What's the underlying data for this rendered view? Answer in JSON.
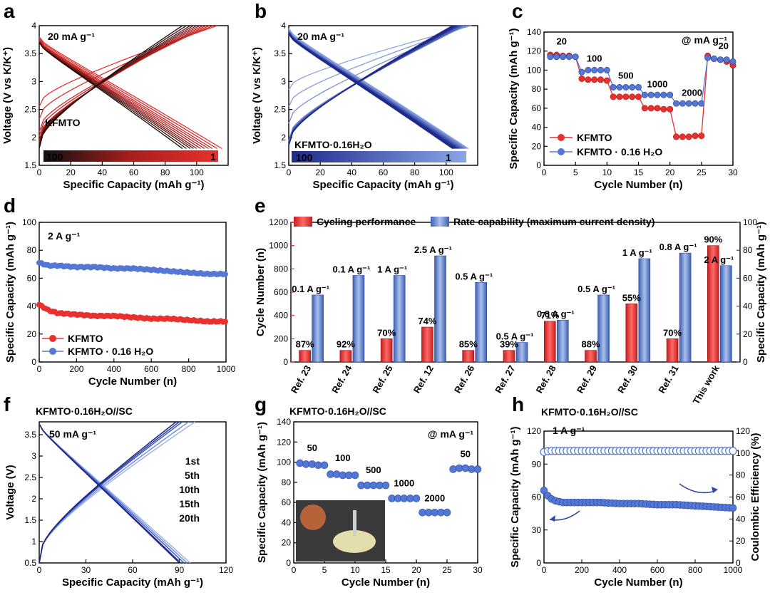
{
  "figure": {
    "panel_letters": [
      "a",
      "b",
      "c",
      "d",
      "e",
      "f",
      "g",
      "h"
    ],
    "colors": {
      "red": "#e8312f",
      "red_dark": "#a81e1e",
      "blue": "#5577d4",
      "blue_dark": "#1f2a8c",
      "blue_light": "#8aa6e6",
      "bar_red": "#e8312f",
      "bar_blue": "#6f8fd1"
    }
  },
  "chart_data": [
    {
      "id": "a",
      "type": "line",
      "title": "20 mA g⁻¹",
      "xlabel": "Specific Capacity (mAh g⁻¹)",
      "ylabel": "Voltage (V vs K/K⁺)",
      "xlim": [
        0,
        120
      ],
      "ylim": [
        1.5,
        4.0
      ],
      "xticks": [
        0,
        20,
        40,
        60,
        80,
        100
      ],
      "yticks": [
        1.5,
        2.0,
        2.5,
        3.0,
        3.5,
        4.0
      ],
      "legend": {
        "label": "KFMTO",
        "colorbar_left": "100",
        "colorbar_right": "1"
      },
      "series": [
        {
          "cycle": 1,
          "charge_cap": 113,
          "discharge_cap": 116,
          "charge_start_v": 2.55,
          "discharge_start_v": 3.8,
          "end_v": 1.8
        },
        {
          "cycle": 10,
          "charge_cap": 108,
          "discharge_cap": 110,
          "charge_start_v": 2.1,
          "discharge_start_v": 3.75,
          "end_v": 1.8
        },
        {
          "cycle": 30,
          "charge_cap": 104,
          "discharge_cap": 105,
          "charge_start_v": 1.95,
          "discharge_start_v": 3.72,
          "end_v": 1.8
        },
        {
          "cycle": 50,
          "charge_cap": 100,
          "discharge_cap": 100,
          "charge_start_v": 1.9,
          "discharge_start_v": 3.72,
          "end_v": 1.8
        },
        {
          "cycle": 75,
          "charge_cap": 96,
          "discharge_cap": 96,
          "charge_start_v": 1.85,
          "discharge_start_v": 3.7,
          "end_v": 1.8
        },
        {
          "cycle": 100,
          "charge_cap": 91,
          "discharge_cap": 91,
          "charge_start_v": 1.8,
          "discharge_start_v": 3.7,
          "end_v": 1.8
        }
      ]
    },
    {
      "id": "b",
      "type": "line",
      "title": "20 mA g⁻¹",
      "xlabel": "Specific Capacity (mAh g⁻¹)",
      "ylabel": "Voltage (V vs K/K⁺)",
      "xlim": [
        0,
        120
      ],
      "ylim": [
        1.5,
        4.0
      ],
      "xticks": [
        0,
        20,
        40,
        60,
        80,
        100
      ],
      "yticks": [
        1.5,
        2.0,
        2.5,
        3.0,
        3.5,
        4.0
      ],
      "legend": {
        "label": "KFMTO·0.16H₂O",
        "colorbar_left": "100",
        "colorbar_right": "1"
      },
      "series": [
        {
          "cycle": 1,
          "charge_cap": 116,
          "discharge_cap": 114,
          "charge_start_v": 2.85,
          "discharge_start_v": 3.95,
          "end_v": 1.8
        },
        {
          "cycle": 10,
          "charge_cap": 112,
          "discharge_cap": 112,
          "charge_start_v": 1.95,
          "discharge_start_v": 3.9,
          "end_v": 1.8
        },
        {
          "cycle": 30,
          "charge_cap": 110,
          "discharge_cap": 110,
          "charge_start_v": 1.9,
          "discharge_start_v": 3.9,
          "end_v": 1.8
        },
        {
          "cycle": 50,
          "charge_cap": 108,
          "discharge_cap": 108,
          "charge_start_v": 1.88,
          "discharge_start_v": 3.88,
          "end_v": 1.8
        },
        {
          "cycle": 75,
          "charge_cap": 106,
          "discharge_cap": 106,
          "charge_start_v": 1.86,
          "discharge_start_v": 3.88,
          "end_v": 1.8
        },
        {
          "cycle": 100,
          "charge_cap": 104,
          "discharge_cap": 104,
          "charge_start_v": 1.85,
          "discharge_start_v": 3.85,
          "end_v": 1.8
        }
      ]
    },
    {
      "id": "c",
      "type": "scatter",
      "title": "@ mA g⁻¹",
      "xlabel": "Cycle Number (n)",
      "ylabel": "Specific Capacity (mAh g⁻¹)",
      "xlim": [
        0,
        30
      ],
      "ylim": [
        0,
        140
      ],
      "xticks": [
        0,
        5,
        10,
        15,
        20,
        25,
        30
      ],
      "yticks": [
        0,
        20,
        40,
        60,
        80,
        100,
        120,
        140
      ],
      "rate_labels": [
        {
          "text": "20",
          "x": 2.8,
          "y": 127
        },
        {
          "text": "100",
          "x": 8,
          "y": 109
        },
        {
          "text": "500",
          "x": 13,
          "y": 91
        },
        {
          "text": "1000",
          "x": 18,
          "y": 82
        },
        {
          "text": "2000",
          "x": 23.5,
          "y": 73
        },
        {
          "text": "20",
          "x": 28.5,
          "y": 122
        }
      ],
      "series": [
        {
          "name": "KFMTO",
          "color_key": "red",
          "x": [
            1,
            2,
            3,
            4,
            5,
            6,
            7,
            8,
            9,
            10,
            11,
            12,
            13,
            14,
            15,
            16,
            17,
            18,
            19,
            20,
            21,
            22,
            23,
            24,
            25,
            26,
            27,
            28,
            29,
            30
          ],
          "values": [
            116,
            116,
            115,
            115,
            114,
            91,
            90,
            90,
            90,
            89,
            72,
            72,
            72,
            72,
            72,
            60,
            60,
            60,
            59,
            59,
            30,
            30,
            30,
            31,
            31,
            115,
            112,
            111,
            109,
            105
          ]
        },
        {
          "name": "KFMTO · 0.16 H₂O",
          "color_key": "blue",
          "x": [
            1,
            2,
            3,
            4,
            5,
            6,
            7,
            8,
            9,
            10,
            11,
            12,
            13,
            14,
            15,
            16,
            17,
            18,
            19,
            20,
            21,
            22,
            23,
            24,
            25,
            26,
            27,
            28,
            29,
            30
          ],
          "values": [
            114,
            114,
            114,
            114,
            114,
            98,
            100,
            100,
            100,
            100,
            82,
            82,
            82,
            82,
            82,
            74,
            74,
            74,
            74,
            74,
            65,
            65,
            65,
            65,
            65,
            113,
            112,
            111,
            111,
            109
          ]
        }
      ]
    },
    {
      "id": "d",
      "type": "scatter",
      "title": "2 A g⁻¹",
      "xlabel": "Cycle Number (n)",
      "ylabel": "Specific Capacity (mAh g⁻¹)",
      "xlim": [
        0,
        1000
      ],
      "ylim": [
        0,
        100
      ],
      "xticks": [
        0,
        200,
        400,
        600,
        800,
        1000
      ],
      "yticks": [
        0,
        20,
        40,
        60,
        80,
        100
      ],
      "series": [
        {
          "name": "KFMTO",
          "color_key": "red",
          "x": [
            0,
            25,
            50,
            100,
            200,
            300,
            400,
            500,
            600,
            700,
            800,
            900,
            1000
          ],
          "values": [
            41,
            39,
            37,
            35,
            34,
            33,
            33,
            32,
            31,
            31,
            30,
            29,
            29
          ]
        },
        {
          "name": "KFMTO · 0.16 H₂O",
          "color_key": "blue",
          "x": [
            0,
            25,
            50,
            100,
            200,
            300,
            400,
            500,
            600,
            700,
            800,
            900,
            1000
          ],
          "values": [
            71,
            70,
            69,
            69,
            68,
            68,
            67,
            67,
            66,
            65,
            64,
            63,
            63
          ]
        }
      ]
    },
    {
      "id": "e",
      "type": "bar",
      "categories": [
        "Ref. 23",
        "Ref. 24",
        "Ref. 25",
        "Ref. 12",
        "Ref. 26",
        "Ref. 27",
        "Ref. 28",
        "Ref. 29",
        "Ref. 30",
        "Ref. 31",
        "This work"
      ],
      "ylabel_left": "Cycle Number (n)",
      "ylabel_right": "Specific Capacity (mAh g⁻¹)",
      "ylim_left": [
        0,
        1200
      ],
      "ylim_right": [
        0,
        100
      ],
      "yticks_left": [
        0,
        200,
        400,
        600,
        800,
        1000,
        1200
      ],
      "yticks_right": [
        0,
        20,
        40,
        60,
        80,
        100
      ],
      "legend": [
        "Cycling performance",
        "Rate capability (maximum current density)"
      ],
      "series": [
        {
          "name": "Cycling performance",
          "axis": "left",
          "color_key": "bar_red",
          "values": [
            100,
            100,
            200,
            300,
            100,
            100,
            350,
            100,
            500,
            200,
            1000
          ],
          "labels": [
            "87%",
            "92%",
            "70%",
            "74%",
            "85%",
            "39%",
            "71%",
            "88%",
            "55%",
            "70%",
            "90%"
          ]
        },
        {
          "name": "Rate capability (maximum current density)",
          "axis": "right",
          "color_key": "bar_blue",
          "values": [
            48,
            62,
            62,
            76,
            57,
            14,
            30,
            48,
            74,
            78,
            69
          ],
          "labels": [
            "0.1 A g⁻¹",
            "0.1 A g⁻¹",
            "1 A g⁻¹",
            "2.5 A g⁻¹",
            "0.5 A g⁻¹",
            "0.5 A g⁻¹",
            "0.8 A g⁻¹",
            "0.5 A g⁻¹",
            "1 A g⁻¹",
            "0.8 A g⁻¹",
            "2 A g⁻¹"
          ]
        }
      ]
    },
    {
      "id": "f",
      "type": "line",
      "title": "KFMTO·0.16H₂O//SC",
      "subtitle": "50 mA g⁻¹",
      "xlabel": "Specific Capacity (mAh g⁻¹)",
      "ylabel": "Voltage (V)",
      "xlim": [
        0,
        120
      ],
      "ylim": [
        0.5,
        3.8
      ],
      "xticks": [
        0,
        30,
        60,
        90,
        120
      ],
      "yticks": [
        0.5,
        1.0,
        1.5,
        2.0,
        2.5,
        3.0,
        3.5
      ],
      "series": [
        {
          "name": "1st",
          "charge_cap": 100,
          "discharge_cap": 97
        },
        {
          "name": "5th",
          "charge_cap": 96,
          "discharge_cap": 95
        },
        {
          "name": "10th",
          "charge_cap": 92,
          "discharge_cap": 93
        },
        {
          "name": "15th",
          "charge_cap": 90,
          "discharge_cap": 91
        },
        {
          "name": "20th",
          "charge_cap": 88,
          "discharge_cap": 90
        }
      ]
    },
    {
      "id": "g",
      "type": "scatter",
      "title": "KFMTO·0.16H₂O//SC",
      "subtitle": "@ mA g⁻¹",
      "xlabel": "Cycle Number (n)",
      "ylabel": "Specific Capacity (mAh g⁻¹)",
      "xlim": [
        0,
        30
      ],
      "ylim": [
        0,
        140
      ],
      "xticks": [
        0,
        5,
        10,
        15,
        20,
        25,
        30
      ],
      "yticks": [
        0,
        20,
        40,
        60,
        80,
        100,
        120,
        140
      ],
      "rate_labels": [
        {
          "text": "50",
          "x": 3,
          "y": 111
        },
        {
          "text": "100",
          "x": 8,
          "y": 101
        },
        {
          "text": "500",
          "x": 13,
          "y": 89
        },
        {
          "text": "1000",
          "x": 18,
          "y": 76
        },
        {
          "text": "2000",
          "x": 23,
          "y": 61
        },
        {
          "text": "50",
          "x": 28,
          "y": 105
        }
      ],
      "series": [
        {
          "name": "KFMTO·0.16H₂O//SC",
          "color_key": "blue",
          "x": [
            1,
            2,
            3,
            4,
            5,
            6,
            7,
            8,
            9,
            10,
            11,
            12,
            13,
            14,
            15,
            16,
            17,
            18,
            19,
            20,
            21,
            22,
            23,
            24,
            25,
            26,
            27,
            28,
            29,
            30
          ],
          "values": [
            99,
            98,
            98,
            97,
            97,
            88,
            88,
            87,
            87,
            87,
            77,
            77,
            77,
            77,
            77,
            64,
            64,
            64,
            64,
            64,
            50,
            50,
            50,
            50,
            50,
            93,
            94,
            94,
            93,
            93
          ]
        }
      ]
    },
    {
      "id": "h",
      "type": "scatter",
      "title": "KFMTO·0.16H₂O//SC",
      "subtitle": "1 A g⁻¹",
      "xlabel": "Cycle Number (n)",
      "ylabel_left": "Specific Capacity (mAh g⁻¹)",
      "ylabel_right": "Coulombic Efficiency (%)",
      "xlim": [
        0,
        1000
      ],
      "ylim_left": [
        0,
        120
      ],
      "ylim_right": [
        0,
        120
      ],
      "xticks": [
        0,
        200,
        400,
        600,
        800,
        1000
      ],
      "yticks_left": [
        0,
        30,
        60,
        90,
        120
      ],
      "yticks_right": [
        0,
        20,
        40,
        60,
        80,
        100,
        120
      ],
      "series": [
        {
          "name": "Specific Capacity",
          "axis": "left",
          "color_key": "blue",
          "x": [
            0,
            25,
            50,
            100,
            200,
            300,
            400,
            500,
            600,
            700,
            800,
            900,
            1000
          ],
          "values": [
            66,
            60,
            57,
            55,
            55,
            55,
            54,
            54,
            53,
            53,
            52,
            51,
            50
          ]
        },
        {
          "name": "Coulombic Efficiency",
          "axis": "right",
          "color_key": "blue",
          "x": [
            0,
            25,
            50,
            100,
            200,
            300,
            400,
            500,
            600,
            700,
            800,
            900,
            1000
          ],
          "values": [
            101,
            102,
            102,
            102,
            102,
            102,
            102,
            102,
            102,
            102,
            102,
            102,
            102
          ]
        }
      ]
    }
  ]
}
